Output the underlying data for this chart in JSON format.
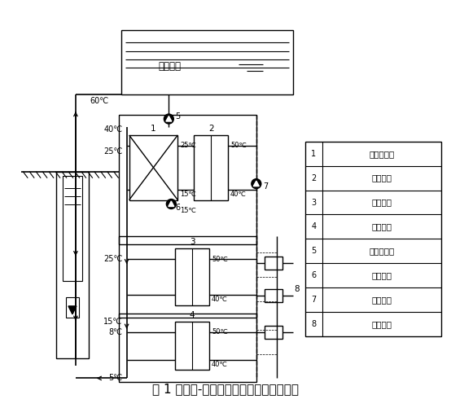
{
  "title": "图 1 污水源-集中供热复合采暖系统工艺图",
  "legend_items": [
    [
      "1",
      "板式换热器"
    ],
    [
      "2",
      "一级热泵"
    ],
    [
      "3",
      "二级热泵"
    ],
    [
      "4",
      "三级热泵"
    ],
    [
      "5",
      "温泉尾水泵"
    ],
    [
      "6",
      "中介水泵"
    ],
    [
      "7",
      "用户水泵"
    ],
    [
      "8",
      "空调末端"
    ]
  ],
  "bg_color": "#ffffff",
  "line_color": "#000000",
  "font_size": 7.5,
  "title_font_size": 11
}
